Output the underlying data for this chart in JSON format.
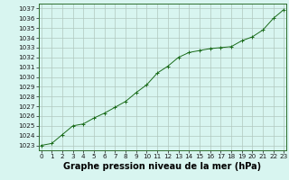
{
  "x": [
    0,
    1,
    2,
    3,
    4,
    5,
    6,
    7,
    8,
    9,
    10,
    11,
    12,
    13,
    14,
    15,
    16,
    17,
    18,
    19,
    20,
    21,
    22,
    23
  ],
  "y": [
    1023.0,
    1023.2,
    1024.1,
    1025.0,
    1025.2,
    1025.8,
    1026.3,
    1026.9,
    1027.5,
    1028.4,
    1029.2,
    1030.4,
    1031.1,
    1032.0,
    1032.5,
    1032.7,
    1032.9,
    1033.0,
    1033.1,
    1033.7,
    1034.1,
    1034.8,
    1036.0,
    1036.9
  ],
  "line_color": "#1a6b1a",
  "marker_color": "#1a6b1a",
  "bg_color": "#d8f5f0",
  "grid_color": "#b0c8be",
  "xlabel": "Graphe pression niveau de la mer (hPa)",
  "ylim_min": 1022.5,
  "ylim_max": 1037.5,
  "xlim_min": -0.2,
  "xlim_max": 23.2,
  "yticks": [
    1023,
    1024,
    1025,
    1026,
    1027,
    1028,
    1029,
    1030,
    1031,
    1032,
    1033,
    1034,
    1035,
    1036,
    1037
  ],
  "xticks": [
    0,
    1,
    2,
    3,
    4,
    5,
    6,
    7,
    8,
    9,
    10,
    11,
    12,
    13,
    14,
    15,
    16,
    17,
    18,
    19,
    20,
    21,
    22,
    23
  ],
  "tick_fontsize": 5.2,
  "xlabel_fontsize": 7.0,
  "spine_color": "#2d6e2d",
  "tick_color": "#1a1a1a"
}
